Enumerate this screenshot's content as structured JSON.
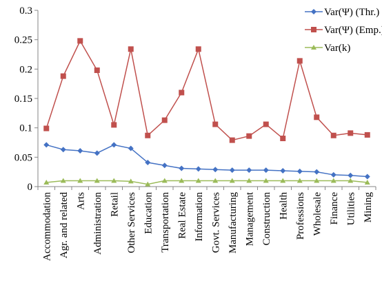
{
  "chart_data": {
    "type": "line",
    "title": "",
    "xlabel": "",
    "ylabel": "",
    "ylim": [
      0,
      0.3
    ],
    "yticks": [
      0,
      0.05,
      0.1,
      0.15,
      0.2,
      0.25,
      0.3
    ],
    "ytick_labels": [
      "0",
      "0.05",
      "0.1",
      "0.15",
      "0.2",
      "0.25",
      "0.3"
    ],
    "grid": false,
    "legend_position": "top-right",
    "categories": [
      "Accommodation",
      "Agr. and related",
      "Arts",
      "Administration",
      "Retail",
      "Other Services",
      "Education",
      "Transportation",
      "Real Estate",
      "Information",
      "Govt. Services",
      "Manufacturing",
      "Management",
      "Construction",
      "Health",
      "Professions",
      "Wholesale",
      "Finance",
      "Utilities",
      "Mining"
    ],
    "series": [
      {
        "name": "Var(Ψ) (Thr.)",
        "color": "#4472C4",
        "marker": "diamond",
        "values": [
          0.071,
          0.063,
          0.061,
          0.057,
          0.071,
          0.065,
          0.041,
          0.036,
          0.031,
          0.03,
          0.029,
          0.028,
          0.028,
          0.028,
          0.027,
          0.026,
          0.025,
          0.02,
          0.019,
          0.017
        ]
      },
      {
        "name": "Var(Ψ) (Emp.)",
        "color": "#C0504D",
        "marker": "square",
        "values": [
          0.099,
          0.188,
          0.248,
          0.198,
          0.105,
          0.234,
          0.087,
          0.113,
          0.16,
          0.234,
          0.106,
          0.079,
          0.086,
          0.106,
          0.082,
          0.214,
          0.118,
          0.087,
          0.091,
          0.088
        ]
      },
      {
        "name": "Var(k)",
        "color": "#9BBB59",
        "marker": "triangle",
        "values": [
          0.007,
          0.01,
          0.01,
          0.01,
          0.01,
          0.009,
          0.004,
          0.01,
          0.01,
          0.01,
          0.01,
          0.01,
          0.01,
          0.01,
          0.01,
          0.01,
          0.01,
          0.01,
          0.01,
          0.007
        ]
      }
    ]
  }
}
